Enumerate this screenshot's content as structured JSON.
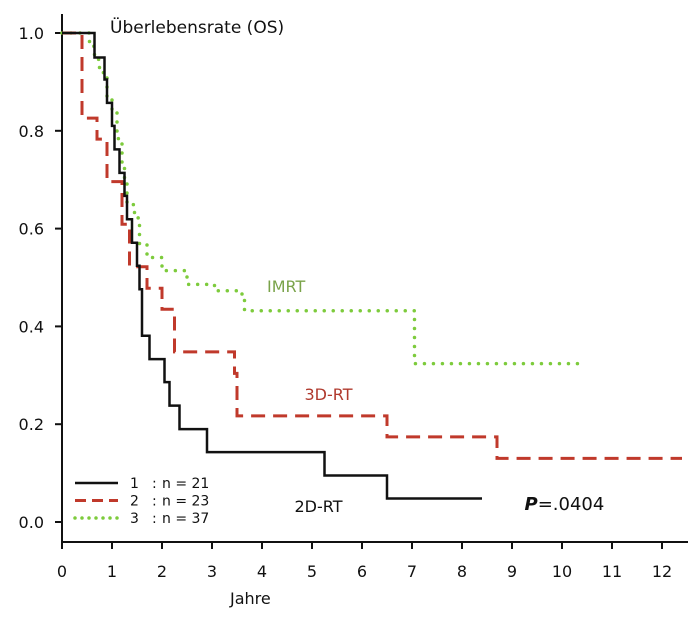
{
  "chart_data": {
    "type": "line",
    "title": "Überlebensrate (OS)",
    "xlabel": "Jahre",
    "ylabel": "",
    "xlim": [
      0,
      12.5
    ],
    "ylim": [
      0,
      1
    ],
    "xticks": [
      0,
      1,
      2,
      3,
      4,
      5,
      6,
      7,
      8,
      9,
      10,
      11,
      12
    ],
    "yticks": [
      0.0,
      0.2,
      0.4,
      0.6,
      0.8,
      1.0
    ],
    "ytick_labels": [
      "0.0",
      "0.2",
      "0.4",
      "0.6",
      "0.8",
      "1.0"
    ],
    "step": true,
    "series": [
      {
        "name": "2D-RT",
        "color": "#111111",
        "dash": "solid",
        "x": [
          0,
          0.65,
          0.85,
          0.9,
          1.0,
          1.05,
          1.15,
          1.25,
          1.3,
          1.4,
          1.5,
          1.55,
          1.6,
          1.75,
          2.05,
          2.15,
          2.35,
          2.9,
          5.25,
          6.5,
          8.4
        ],
        "y": [
          1.0,
          0.95,
          0.905,
          0.857,
          0.81,
          0.762,
          0.714,
          0.667,
          0.619,
          0.571,
          0.524,
          0.476,
          0.381,
          0.333,
          0.286,
          0.238,
          0.19,
          0.143,
          0.095,
          0.048,
          0.048
        ]
      },
      {
        "name": "3D-RT",
        "color": "#c0392b",
        "dash": "dashed",
        "x": [
          0,
          0.4,
          0.7,
          0.9,
          1.2,
          1.35,
          1.7,
          2.0,
          2.25,
          3.0,
          3.45,
          3.5,
          6.5,
          8.7,
          12.4
        ],
        "y": [
          1.0,
          0.826,
          0.783,
          0.696,
          0.609,
          0.522,
          0.478,
          0.435,
          0.348,
          0.348,
          0.304,
          0.217,
          0.174,
          0.13,
          0.13
        ]
      },
      {
        "name": "IMRT",
        "color": "#7dcb3c",
        "dash": "dotted",
        "x": [
          0,
          0.55,
          0.65,
          0.75,
          0.9,
          1.0,
          1.1,
          1.2,
          1.25,
          1.3,
          1.45,
          1.55,
          1.7,
          2.0,
          2.5,
          3.05,
          3.6,
          3.65,
          7.0,
          7.05,
          10.4
        ],
        "y": [
          1.0,
          0.973,
          0.946,
          0.919,
          0.865,
          0.838,
          0.784,
          0.73,
          0.703,
          0.649,
          0.622,
          0.568,
          0.541,
          0.514,
          0.486,
          0.473,
          0.459,
          0.432,
          0.432,
          0.324,
          0.324
        ]
      }
    ],
    "legend": {
      "position": "bottom-left",
      "entries": [
        {
          "key": "1",
          "sep": ":",
          "text": "n = 21",
          "series": 0
        },
        {
          "key": "2",
          "sep": ":",
          "text": "n = 23",
          "series": 1
        },
        {
          "key": "3",
          "sep": ":",
          "text": "n = 37",
          "series": 2
        }
      ]
    },
    "annotations": [
      {
        "text": "IMRT",
        "x": 4.1,
        "y": 0.47,
        "color": "#7aa34a"
      },
      {
        "text": "3D-RT",
        "x": 4.85,
        "y": 0.25,
        "color": "#b03a2e"
      },
      {
        "text": "2D-RT",
        "x": 4.65,
        "y": 0.02,
        "color": "#111111"
      }
    ],
    "p_value": {
      "prefix": "P",
      "text": "=.0404",
      "x": 9.25,
      "y": 0.025
    }
  }
}
